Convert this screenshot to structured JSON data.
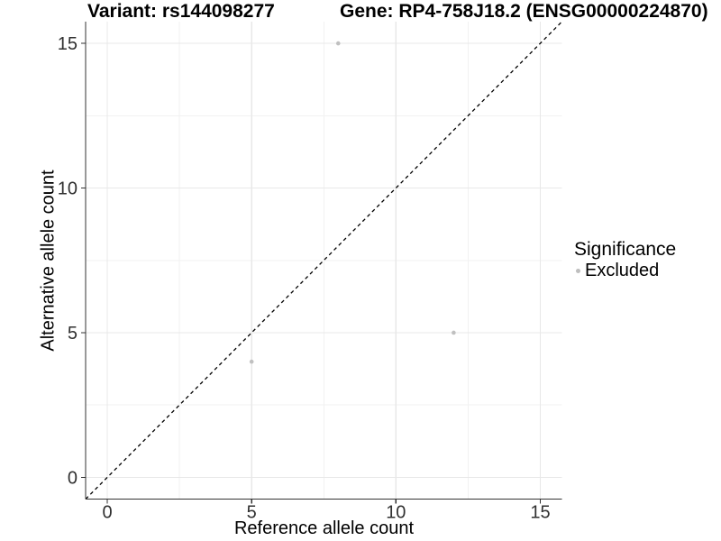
{
  "header": {
    "variant_title": "Variant: rs144098277",
    "gene_title": "Gene: RP4-758J18.2 (ENSG00000224870)"
  },
  "chart_data": {
    "type": "scatter",
    "title_left": "Variant: rs144098277",
    "title_right": "Gene: RP4-758J18.2 (ENSG00000224870)",
    "xlabel": "Reference allele count",
    "ylabel": "Alternative allele count",
    "xlim": [
      -0.75,
      15.75
    ],
    "ylim": [
      -0.75,
      15.75
    ],
    "x_ticks": [
      0,
      5,
      10,
      15
    ],
    "y_ticks": [
      0,
      5,
      10,
      15
    ],
    "x_minor_gridlines": [
      2.5,
      7.5,
      12.5
    ],
    "y_minor_gridlines": [
      2.5,
      7.5,
      12.5
    ],
    "grid": true,
    "points": [
      {
        "x": 8,
        "y": 15,
        "series": "Excluded"
      },
      {
        "x": 12,
        "y": 5,
        "series": "Excluded"
      },
      {
        "x": 5,
        "y": 4,
        "series": "Excluded"
      }
    ],
    "reference_line": {
      "type": "identity",
      "style": "dashed",
      "color": "#000000"
    },
    "legend": {
      "title": "Significance",
      "position": "right",
      "items": [
        {
          "label": "Excluded",
          "color": "#bebebe"
        }
      ]
    },
    "colors": {
      "point": "#c0c0c0",
      "grid_major": "#e8e8e8",
      "grid_minor": "#f2f2f2",
      "axis_line": "#333333",
      "tick_mark": "#333333",
      "tick_label": "#303030",
      "dashed_line": "#000000"
    }
  }
}
